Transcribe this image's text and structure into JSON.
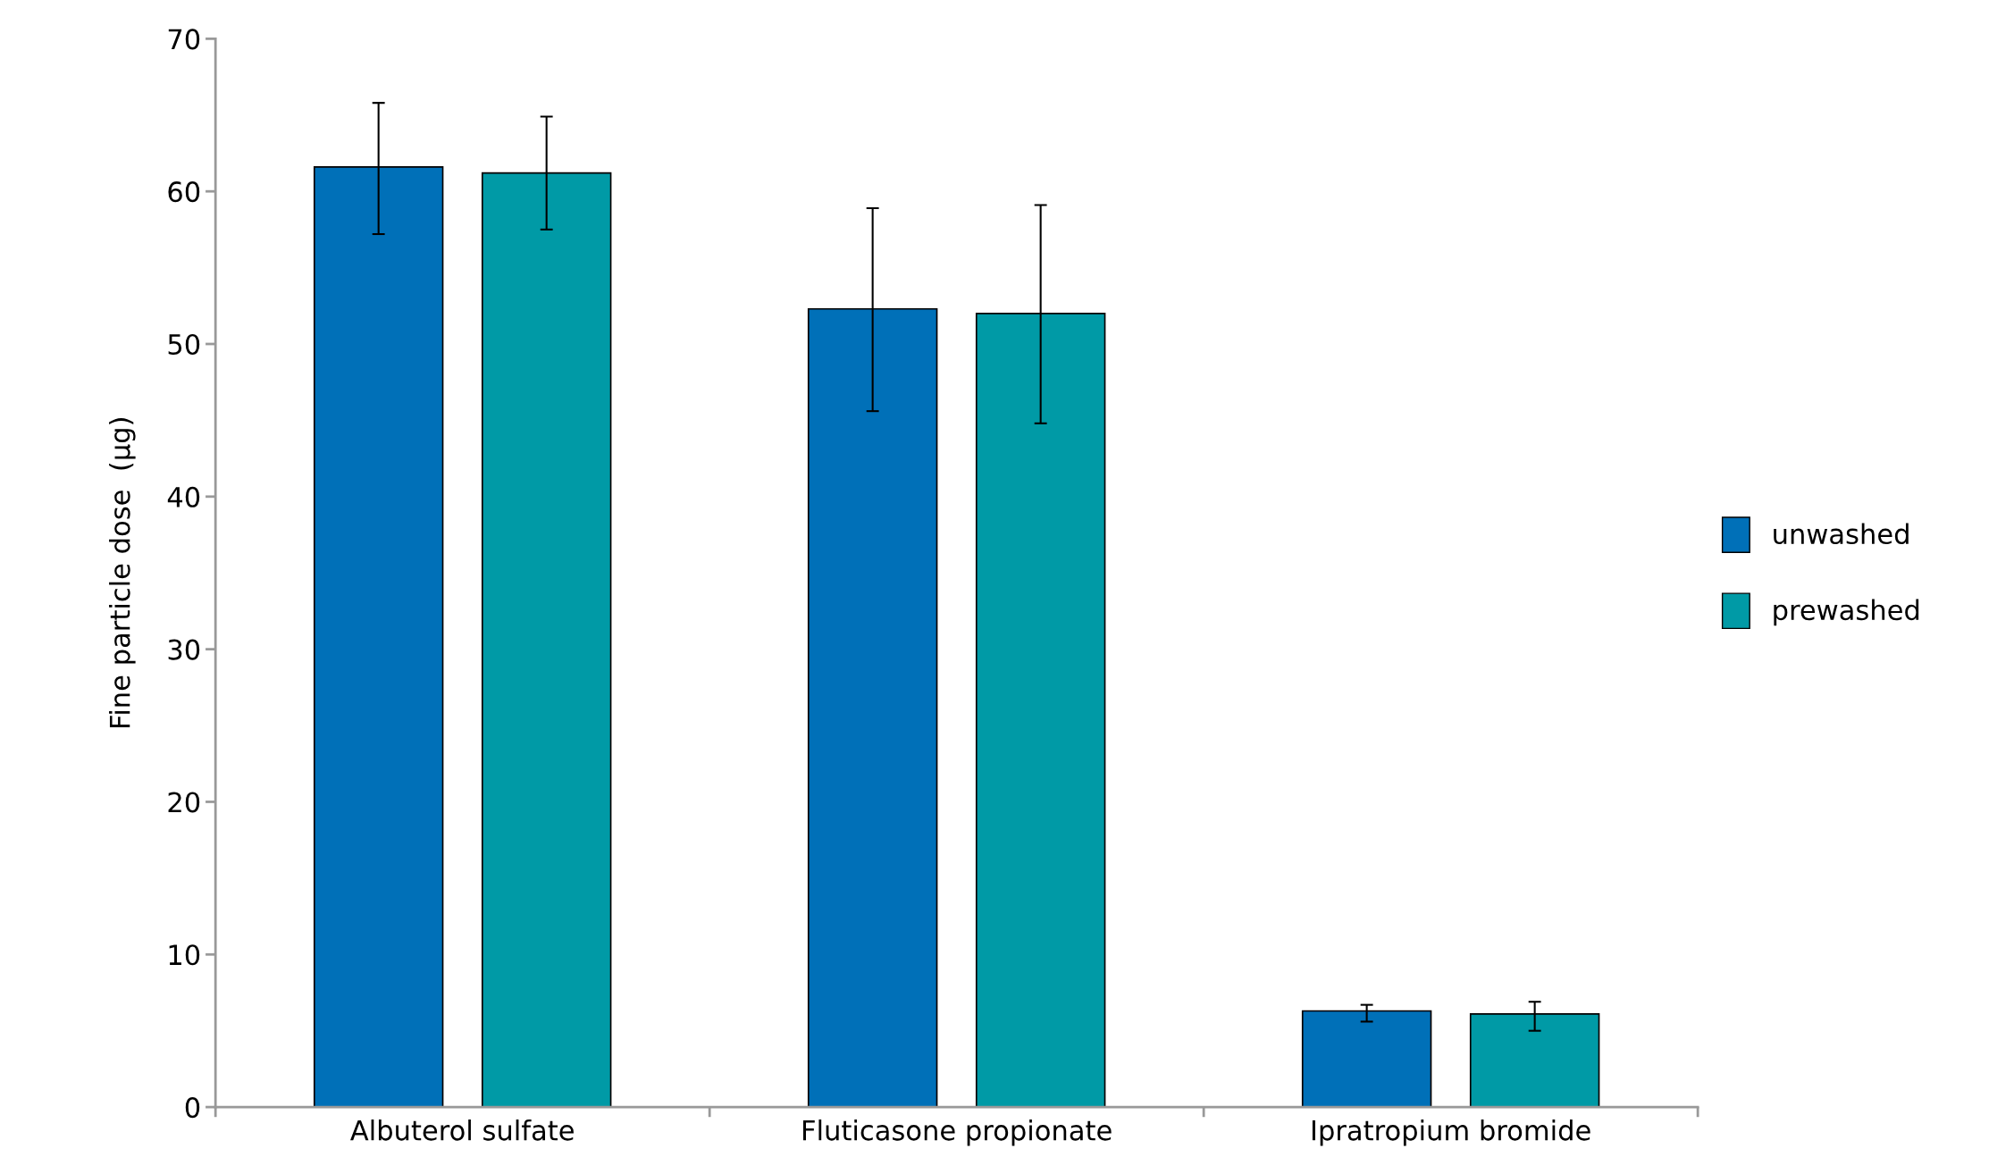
{
  "chart_data": {
    "type": "bar",
    "ylabel": "Fine particle dose  (µg)",
    "categories": [
      "Albuterol sulfate",
      "Fluticasone propionate",
      "Ipratropium bromide"
    ],
    "series": [
      {
        "name": "unwashed",
        "color": "#0070b8",
        "values": [
          61.6,
          52.3,
          6.3
        ],
        "errors": [
          [
            57.2,
            65.8
          ],
          [
            45.6,
            58.9
          ],
          [
            5.6,
            6.7
          ]
        ]
      },
      {
        "name": "prewashed",
        "color": "#009aa6",
        "values": [
          61.2,
          52.0,
          6.1
        ],
        "errors": [
          [
            57.5,
            64.9
          ],
          [
            44.8,
            59.1
          ],
          [
            5.0,
            6.9
          ]
        ]
      }
    ],
    "ylim": [
      0,
      70
    ],
    "yticks": [
      0,
      10,
      20,
      30,
      40,
      50,
      60,
      70
    ],
    "grid": false,
    "legend": "right"
  }
}
